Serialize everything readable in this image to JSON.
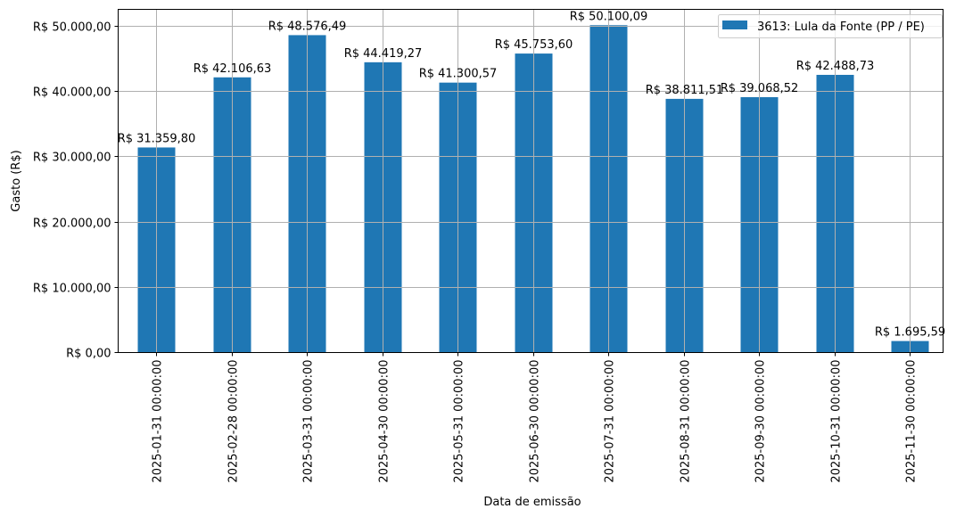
{
  "chart_data": {
    "type": "bar",
    "title": "",
    "xlabel": "Data de emissão",
    "ylabel": "Gasto (R$)",
    "ylim": [
      0,
      52605
    ],
    "grid": true,
    "legend_position": "upper right",
    "bar_color": "#1f77b4",
    "categories": [
      "2025-01-31 00:00:00",
      "2025-02-28 00:00:00",
      "2025-03-31 00:00:00",
      "2025-04-30 00:00:00",
      "2025-05-31 00:00:00",
      "2025-06-30 00:00:00",
      "2025-07-31 00:00:00",
      "2025-08-31 00:00:00",
      "2025-09-30 00:00:00",
      "2025-10-31 00:00:00",
      "2025-11-30 00:00:00"
    ],
    "series": [
      {
        "name": "3613: Lula da Fonte (PP / PE)",
        "values": [
          31359.8,
          42106.63,
          48576.49,
          44419.27,
          41300.57,
          45753.6,
          50100.09,
          38811.51,
          39068.52,
          42488.73,
          1695.59
        ],
        "labels": [
          "R$ 31.359,80",
          "R$ 42.106,63",
          "R$ 48.576,49",
          "R$ 44.419,27",
          "R$ 41.300,57",
          "R$ 45.753,60",
          "R$ 50.100,09",
          "R$ 38.811,51",
          "R$ 39.068,52",
          "R$ 42.488,73",
          "R$ 1.695,59"
        ]
      }
    ],
    "yticks": [
      0,
      10000,
      20000,
      30000,
      40000,
      50000
    ],
    "ytick_labels": [
      "R$ 0,00",
      "R$ 10.000,00",
      "R$ 20.000,00",
      "R$ 30.000,00",
      "R$ 40.000,00",
      "R$ 50.000,00"
    ]
  }
}
